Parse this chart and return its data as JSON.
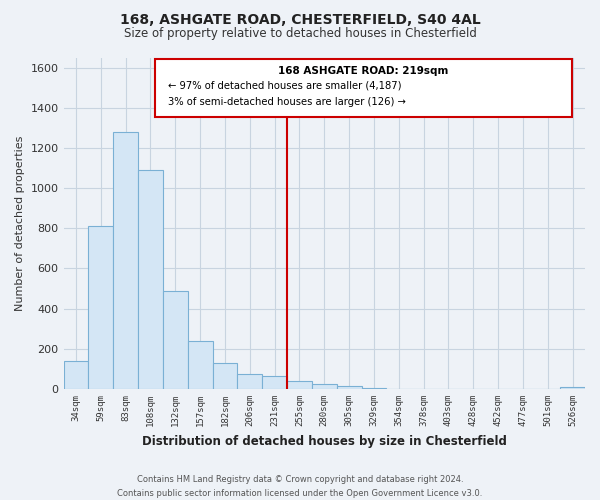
{
  "title": "168, ASHGATE ROAD, CHESTERFIELD, S40 4AL",
  "subtitle": "Size of property relative to detached houses in Chesterfield",
  "xlabel": "Distribution of detached houses by size in Chesterfield",
  "ylabel": "Number of detached properties",
  "footer_line1": "Contains HM Land Registry data © Crown copyright and database right 2024.",
  "footer_line2": "Contains public sector information licensed under the Open Government Licence v3.0.",
  "bin_labels": [
    "34sqm",
    "59sqm",
    "83sqm",
    "108sqm",
    "132sqm",
    "157sqm",
    "182sqm",
    "206sqm",
    "231sqm",
    "255sqm",
    "280sqm",
    "305sqm",
    "329sqm",
    "354sqm",
    "378sqm",
    "403sqm",
    "428sqm",
    "452sqm",
    "477sqm",
    "501sqm",
    "526sqm"
  ],
  "bar_values": [
    140,
    810,
    1280,
    1090,
    490,
    240,
    128,
    75,
    65,
    40,
    25,
    15,
    5,
    2,
    0,
    0,
    0,
    0,
    0,
    0,
    12
  ],
  "bar_color": "#d4e6f5",
  "bar_edge_color": "#7ab0d4",
  "vline_x": 8.5,
  "vline_color": "#cc0000",
  "annotation_title": "168 ASHGATE ROAD: 219sqm",
  "annotation_line1": "← 97% of detached houses are smaller (4,187)",
  "annotation_line2": "3% of semi-detached houses are larger (126) →",
  "annotation_box_edge_color": "#cc0000",
  "annotation_box_face_color": "#ffffff",
  "ylim": [
    0,
    1650
  ],
  "yticks": [
    0,
    200,
    400,
    600,
    800,
    1000,
    1200,
    1400,
    1600
  ],
  "background_color": "#eef2f7",
  "plot_bg_color": "#eef2f7",
  "grid_color": "#c8d4e0"
}
